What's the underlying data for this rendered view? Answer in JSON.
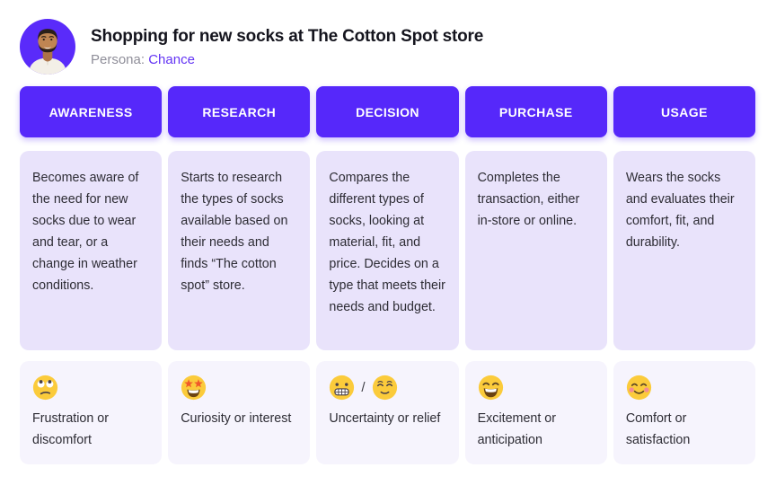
{
  "header": {
    "title": "Shopping for new socks at The Cotton Spot store",
    "persona_label": "Persona:",
    "persona_name": "Chance"
  },
  "theme": {
    "stage_bg": "#5628FA",
    "description_card_bg": "#E9E3FB",
    "emotion_card_bg": "#F6F4FD",
    "persona_link_color": "#6334F4",
    "title_color": "#15151E",
    "body_text_color": "#2D2C34",
    "muted_text_color": "#8F8E99",
    "emoji_face_color": "#FBCB3B"
  },
  "stages": [
    {
      "label": "AWARENESS",
      "description": "Becomes aware of the need for new socks due to wear and tear, or a change in weather conditions.",
      "emotion": {
        "icons": [
          "face-with-rolling-eyes"
        ],
        "label": "Frustration or discomfort"
      }
    },
    {
      "label": "RESEARCH",
      "description": "Starts to research the types of socks available based on their needs and finds “The cotton spot” store.",
      "emotion": {
        "icons": [
          "star-struck-face"
        ],
        "label": "Curiosity or interest"
      }
    },
    {
      "label": "DECISION",
      "description": "Compares the different types of socks, looking at material, fit, and price. Decides on a type that meets their needs and budget.",
      "emotion": {
        "icons": [
          "grimacing-face",
          "relieved-face"
        ],
        "separator": "/",
        "label": "Uncertainty or relief"
      }
    },
    {
      "label": "PURCHASE",
      "description": "Completes the transaction, either in-store or online.",
      "emotion": {
        "icons": [
          "grinning-face"
        ],
        "label": "Excitement or anticipation"
      }
    },
    {
      "label": "USAGE",
      "description": "Wears the socks and evaluates their comfort, fit, and durability.",
      "emotion": {
        "icons": [
          "smiling-face-rosy-cheeks"
        ],
        "label": "Comfort or satisfaction"
      }
    }
  ]
}
